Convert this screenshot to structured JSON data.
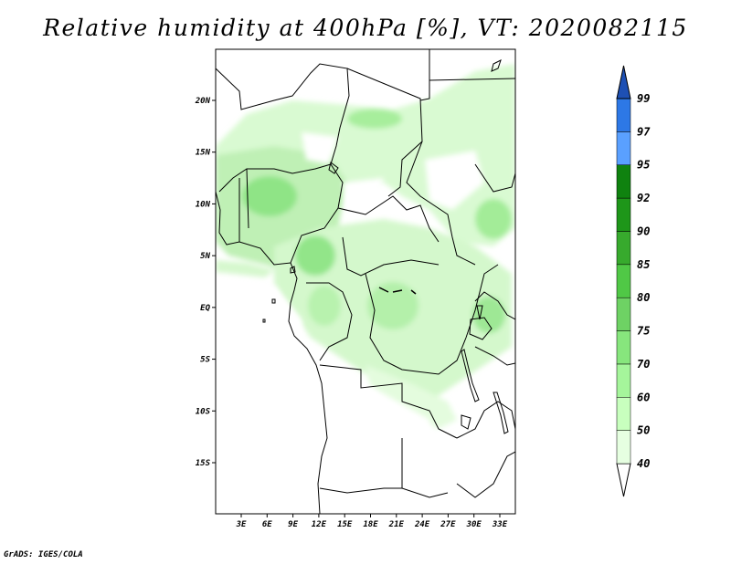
{
  "title": "Relative humidity at 400hPa [%], VT: 2020082115",
  "credit": "GrADS: IGES/COLA",
  "lat_ticks": [
    {
      "label": "20N",
      "lat": 20
    },
    {
      "label": "15N",
      "lat": 15
    },
    {
      "label": "10N",
      "lat": 10
    },
    {
      "label": "5N",
      "lat": 5
    },
    {
      "label": "EQ",
      "lat": 0
    },
    {
      "label": "5S",
      "lat": -5
    },
    {
      "label": "10S",
      "lat": -10
    },
    {
      "label": "15S",
      "lat": -15
    }
  ],
  "lon_ticks": [
    {
      "label": "3E",
      "lon": 3
    },
    {
      "label": "6E",
      "lon": 6
    },
    {
      "label": "9E",
      "lon": 9
    },
    {
      "label": "12E",
      "lon": 12
    },
    {
      "label": "15E",
      "lon": 15
    },
    {
      "label": "18E",
      "lon": 18
    },
    {
      "label": "21E",
      "lon": 21
    },
    {
      "label": "24E",
      "lon": 24
    },
    {
      "label": "27E",
      "lon": 27
    },
    {
      "label": "30E",
      "lon": 30
    },
    {
      "label": "33E",
      "lon": 33
    }
  ],
  "colorbar": {
    "levels": [
      "40",
      "50",
      "60",
      "70",
      "75",
      "80",
      "85",
      "90",
      "92",
      "95",
      "97",
      "99"
    ],
    "colors": [
      "#ffffff",
      "#e6ffe1",
      "#c8ffbe",
      "#a5f59b",
      "#87e67d",
      "#6ed264",
      "#50c846",
      "#37aa2d",
      "#1e9619",
      "#0f820f",
      "#5aa0ff",
      "#2d78e6",
      "#1e50b4"
    ]
  }
}
